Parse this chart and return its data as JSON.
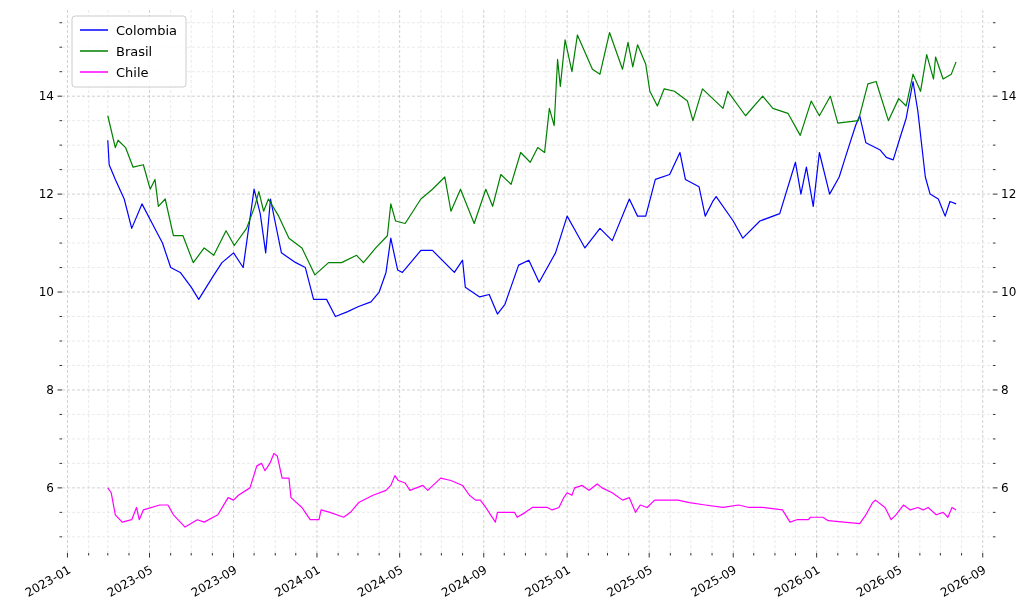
{
  "chart_data": {
    "type": "line",
    "xlim": [
      "2022-12-24",
      "2026-09-16"
    ],
    "ylim": [
      4.67,
      15.76
    ],
    "y2lim": [
      4.67,
      15.76
    ],
    "xticks": [
      "2023-01",
      {
        "value": "2023-02",
        "label": null
      },
      {
        "value": "2023-03",
        "label": null
      },
      {
        "value": "2023-04",
        "label": null
      },
      "2023-05",
      {
        "value": "2023-06",
        "label": null
      },
      {
        "value": "2023-07",
        "label": null
      },
      {
        "value": "2023-08",
        "label": null
      },
      "2023-09",
      {
        "value": "2023-10",
        "label": null
      },
      {
        "value": "2023-11",
        "label": null
      },
      {
        "value": "2023-12",
        "label": null
      },
      "2024-01",
      {
        "value": "2024-02",
        "label": null
      },
      {
        "value": "2024-03",
        "label": null
      },
      {
        "value": "2024-04",
        "label": null
      },
      "2024-05",
      {
        "value": "2024-06",
        "label": null
      },
      {
        "value": "2024-07",
        "label": null
      },
      {
        "value": "2024-08",
        "label": null
      },
      "2024-09",
      {
        "value": "2024-10",
        "label": null
      },
      {
        "value": "2024-11",
        "label": null
      },
      {
        "value": "2024-12",
        "label": null
      },
      "2025-01",
      {
        "value": "2025-02",
        "label": null
      },
      {
        "value": "2025-03",
        "label": null
      },
      {
        "value": "2025-04",
        "label": null
      },
      "2025-05",
      {
        "value": "2025-06",
        "label": null
      },
      {
        "value": "2025-07",
        "label": null
      },
      {
        "value": "2025-08",
        "label": null
      },
      "2025-09",
      {
        "value": "2025-10",
        "label": null
      },
      {
        "value": "2025-11",
        "label": null
      },
      {
        "value": "2025-12",
        "label": null
      },
      "2026-01",
      {
        "value": "2026-02",
        "label": null
      },
      {
        "value": "2026-03",
        "label": null
      },
      {
        "value": "2026-04",
        "label": null
      },
      "2026-05",
      {
        "value": "2026-06",
        "label": null
      },
      {
        "value": "2026-07",
        "label": null
      },
      {
        "value": "2026-08",
        "label": null
      },
      "2026-09"
    ],
    "yticks": [
      {
        "value": 5,
        "label": null
      },
      {
        "value": 5.5,
        "label": null
      },
      6,
      {
        "value": 6.5,
        "label": null
      },
      {
        "value": 7,
        "label": null
      },
      {
        "value": 7.5,
        "label": null
      },
      8,
      {
        "value": 8.5,
        "label": null
      },
      {
        "value": 9,
        "label": null
      },
      {
        "value": 9.5,
        "label": null
      },
      10,
      {
        "value": 10.5,
        "label": null
      },
      {
        "value": 11,
        "label": null
      },
      {
        "value": 11.5,
        "label": null
      },
      12,
      {
        "value": 12.5,
        "label": null
      },
      {
        "value": 13,
        "label": null
      },
      {
        "value": 13.5,
        "label": null
      },
      14,
      {
        "value": 14.5,
        "label": null
      },
      {
        "value": 15,
        "label": null
      },
      {
        "value": 15.5,
        "label": null
      }
    ],
    "y2ticks": [
      {
        "value": 5,
        "label": null
      },
      {
        "value": 5.5,
        "label": null
      },
      6,
      {
        "value": 6.5,
        "label": null
      },
      {
        "value": 7,
        "label": null
      },
      {
        "value": 7.5,
        "label": null
      },
      8,
      {
        "value": 8.5,
        "label": null
      },
      {
        "value": 9,
        "label": null
      },
      {
        "value": 9.5,
        "label": null
      },
      10,
      {
        "value": 10.5,
        "label": null
      },
      {
        "value": 11,
        "label": null
      },
      {
        "value": 11.5,
        "label": null
      },
      12,
      {
        "value": 12.5,
        "label": null
      },
      {
        "value": 13,
        "label": null
      },
      {
        "value": 13.5,
        "label": null
      },
      14,
      {
        "value": 14.5,
        "label": null
      },
      {
        "value": 15,
        "label": null
      },
      {
        "value": 15.5,
        "label": null
      }
    ],
    "grid": true,
    "legend": "top left",
    "line_style": "solid",
    "series": [
      {
        "name": "Colombia",
        "color": "#0000ff",
        "x": [
          "2023-03-01",
          "2023-03-03",
          "2023-03-12",
          "2023-03-25",
          "2023-04-05",
          "2023-04-20",
          "2023-05-05",
          "2023-05-20",
          "2023-06-01",
          "2023-06-15",
          "2023-07-01",
          "2023-07-12",
          "2023-08-01",
          "2023-08-15",
          "2023-09-01",
          "2023-09-15",
          "2023-10-01",
          "2023-10-10",
          "2023-10-18",
          "2023-10-25",
          "2023-11-10",
          "2023-12-01",
          "2023-12-15",
          "2023-12-27",
          "2024-01-15",
          "2024-01-28",
          "2024-02-15",
          "2024-03-01",
          "2024-03-20",
          "2024-04-01",
          "2024-04-11",
          "2024-04-18",
          "2024-04-21",
          "2024-04-28",
          "2024-05-05",
          "2024-06-01",
          "2024-06-18",
          "2024-07-20",
          "2024-08-01",
          "2024-08-05",
          "2024-08-26",
          "2024-09-09",
          "2024-09-21",
          "2024-10-02",
          "2024-10-22",
          "2024-11-06",
          "2024-11-21",
          "2024-12-15",
          "2025-01-01",
          "2025-01-13",
          "2025-01-27",
          "2025-02-18",
          "2025-03-08",
          "2025-04-02",
          "2025-04-14",
          "2025-04-26",
          "2025-05-10",
          "2025-05-31",
          "2025-06-15",
          "2025-06-23",
          "2025-07-13",
          "2025-07-22",
          "2025-08-02",
          "2025-08-07",
          "2025-09-01",
          "2025-09-15",
          "2025-10-10",
          "2025-11-08",
          "2025-12-01",
          "2025-12-09",
          "2025-12-17",
          "2025-12-27",
          "2026-01-05",
          "2026-01-20",
          "2026-02-03",
          "2026-02-12",
          "2026-02-27",
          "2026-03-05",
          "2026-03-14",
          "2026-04-04",
          "2026-04-13",
          "2026-04-23",
          "2026-05-03",
          "2026-05-12",
          "2026-05-22",
          "2026-05-29",
          "2026-06-09",
          "2026-06-16",
          "2026-06-28",
          "2026-07-08",
          "2026-07-15",
          "2026-07-24"
        ],
        "values": [
          13.1,
          12.6,
          12.3,
          11.9,
          11.3,
          11.8,
          11.4,
          11.0,
          10.5,
          10.4,
          10.1,
          9.85,
          10.3,
          10.6,
          10.8,
          10.5,
          12.1,
          11.6,
          10.8,
          11.9,
          10.8,
          10.6,
          10.5,
          9.85,
          9.85,
          9.5,
          9.6,
          9.7,
          9.8,
          10.0,
          10.4,
          11.1,
          10.9,
          10.45,
          10.4,
          10.85,
          10.85,
          10.4,
          10.65,
          10.1,
          9.9,
          9.95,
          9.55,
          9.75,
          10.55,
          10.65,
          10.2,
          10.8,
          11.55,
          11.25,
          10.9,
          11.3,
          11.05,
          11.9,
          11.55,
          11.55,
          12.3,
          12.4,
          12.85,
          12.3,
          12.15,
          11.55,
          11.85,
          11.95,
          11.45,
          11.1,
          11.45,
          11.6,
          12.65,
          12.0,
          12.55,
          11.75,
          12.85,
          12.0,
          12.35,
          12.75,
          13.4,
          13.6,
          13.05,
          12.9,
          12.75,
          12.7,
          13.15,
          13.55,
          14.3,
          13.7,
          12.35,
          12.0,
          11.9,
          11.55,
          11.85,
          11.8
        ]
      },
      {
        "name": "Brasil",
        "color": "#008000",
        "x": [
          "2023-03-01",
          "2023-03-12",
          "2023-03-16",
          "2023-03-27",
          "2023-04-07",
          "2023-04-22",
          "2023-05-02",
          "2023-05-09",
          "2023-05-14",
          "2023-05-24",
          "2023-06-05",
          "2023-06-19",
          "2023-07-04",
          "2023-07-20",
          "2023-08-03",
          "2023-08-21",
          "2023-09-02",
          "2023-09-20",
          "2023-10-02",
          "2023-10-08",
          "2023-10-15",
          "2023-10-22",
          "2023-11-06",
          "2023-11-21",
          "2023-12-10",
          "2023-12-29",
          "2024-01-18",
          "2024-02-06",
          "2024-02-28",
          "2024-03-09",
          "2024-03-27",
          "2024-04-13",
          "2024-04-18",
          "2024-04-25",
          "2024-05-09",
          "2024-06-01",
          "2024-06-18",
          "2024-07-06",
          "2024-07-15",
          "2024-07-29",
          "2024-08-18",
          "2024-09-04",
          "2024-09-14",
          "2024-09-26",
          "2024-10-11",
          "2024-10-25",
          "2024-11-08",
          "2024-11-19",
          "2024-11-29",
          "2024-12-06",
          "2024-12-13",
          "2024-12-18",
          "2024-12-22",
          "2024-12-29",
          "2025-01-08",
          "2025-01-16",
          "2025-02-07",
          "2025-02-18",
          "2025-03-04",
          "2025-03-23",
          "2025-03-31",
          "2025-04-07",
          "2025-04-14",
          "2025-04-26",
          "2025-05-02",
          "2025-05-13",
          "2025-05-23",
          "2025-06-07",
          "2025-06-26",
          "2025-07-04",
          "2025-07-18",
          "2025-08-17",
          "2025-08-24",
          "2025-09-19",
          "2025-10-14",
          "2025-10-29",
          "2025-11-20",
          "2025-12-08",
          "2025-12-24",
          "2026-01-05",
          "2026-01-21",
          "2026-02-01",
          "2026-03-03",
          "2026-03-17",
          "2026-03-29",
          "2026-04-16",
          "2026-05-01",
          "2026-05-12",
          "2026-05-22",
          "2026-06-02",
          "2026-06-11",
          "2026-06-21",
          "2026-06-24",
          "2026-07-05",
          "2026-07-17",
          "2026-07-24"
        ],
        "values": [
          13.6,
          12.95,
          13.1,
          12.95,
          12.55,
          12.6,
          12.1,
          12.3,
          11.75,
          11.9,
          11.15,
          11.15,
          10.6,
          10.9,
          10.75,
          11.25,
          10.95,
          11.3,
          11.75,
          12.05,
          11.65,
          11.9,
          11.55,
          11.1,
          10.9,
          10.35,
          10.6,
          10.6,
          10.75,
          10.6,
          10.9,
          11.15,
          11.8,
          11.45,
          11.4,
          11.9,
          12.1,
          12.35,
          11.65,
          12.1,
          11.4,
          12.1,
          11.75,
          12.4,
          12.2,
          12.85,
          12.65,
          12.95,
          12.85,
          13.75,
          13.4,
          14.75,
          14.2,
          15.15,
          14.5,
          15.25,
          14.55,
          14.45,
          15.3,
          14.55,
          15.1,
          14.6,
          15.05,
          14.65,
          14.1,
          13.8,
          14.15,
          14.1,
          13.9,
          13.5,
          14.15,
          13.75,
          14.1,
          13.6,
          14.0,
          13.75,
          13.65,
          13.2,
          13.9,
          13.6,
          14.0,
          13.45,
          13.5,
          14.25,
          14.3,
          13.5,
          13.95,
          13.8,
          14.45,
          14.1,
          14.85,
          14.35,
          14.8,
          14.35,
          14.45,
          14.7
        ]
      },
      {
        "name": "Chile",
        "color": "#ff00ff",
        "x": [
          "2023-03-01",
          "2023-03-06",
          "2023-03-12",
          "2023-03-22",
          "2023-04-05",
          "2023-04-12",
          "2023-04-16",
          "2023-04-22",
          "2023-05-16",
          "2023-05-28",
          "2023-06-05",
          "2023-06-22",
          "2023-07-10",
          "2023-07-20",
          "2023-08-09",
          "2023-08-24",
          "2023-09-01",
          "2023-09-08",
          "2023-09-25",
          "2023-10-05",
          "2023-10-12",
          "2023-10-17",
          "2023-10-24",
          "2023-10-30",
          "2023-11-04",
          "2023-11-11",
          "2023-11-21",
          "2023-11-24",
          "2023-12-10",
          "2023-12-22",
          "2024-01-04",
          "2024-01-07",
          "2024-01-20",
          "2024-02-09",
          "2024-02-19",
          "2024-03-02",
          "2024-03-23",
          "2024-04-11",
          "2024-04-18",
          "2024-04-24",
          "2024-04-29",
          "2024-05-09",
          "2024-05-16",
          "2024-06-04",
          "2024-06-11",
          "2024-06-30",
          "2024-07-15",
          "2024-08-01",
          "2024-08-11",
          "2024-08-20",
          "2024-08-27",
          "2024-09-04",
          "2024-09-18",
          "2024-09-21",
          "2024-10-16",
          "2024-10-20",
          "2024-11-01",
          "2024-11-11",
          "2024-12-03",
          "2024-12-10",
          "2024-12-20",
          "2024-12-27",
          "2025-01-01",
          "2025-01-08",
          "2025-01-12",
          "2025-01-23",
          "2025-02-02",
          "2025-02-14",
          "2025-02-21",
          "2025-03-08",
          "2025-03-23",
          "2025-04-02",
          "2025-04-11",
          "2025-04-18",
          "2025-04-28",
          "2025-05-09",
          "2025-05-25",
          "2025-06-12",
          "2025-06-29",
          "2025-07-22",
          "2025-08-17",
          "2025-09-09",
          "2025-09-24",
          "2025-10-14",
          "2025-11-12",
          "2025-11-23",
          "2025-12-03",
          "2025-12-20",
          "2025-12-23",
          "2026-01-10",
          "2026-01-18",
          "2026-03-05",
          "2026-03-14",
          "2026-03-24",
          "2026-03-28",
          "2026-04-11",
          "2026-04-20",
          "2026-04-27",
          "2026-05-08",
          "2026-05-18",
          "2026-05-29",
          "2026-06-06",
          "2026-06-13",
          "2026-06-25",
          "2026-07-05",
          "2026-07-12",
          "2026-07-18",
          "2026-07-24"
        ],
        "values": [
          6.0,
          5.9,
          5.45,
          5.3,
          5.35,
          5.6,
          5.35,
          5.55,
          5.65,
          5.65,
          5.45,
          5.2,
          5.35,
          5.3,
          5.45,
          5.8,
          5.75,
          5.85,
          6.0,
          6.45,
          6.5,
          6.35,
          6.5,
          6.7,
          6.65,
          6.2,
          6.2,
          5.8,
          5.6,
          5.35,
          5.35,
          5.55,
          5.5,
          5.4,
          5.5,
          5.7,
          5.85,
          5.95,
          6.05,
          6.25,
          6.15,
          6.1,
          5.95,
          6.05,
          5.95,
          6.2,
          6.15,
          6.05,
          5.85,
          5.75,
          5.75,
          5.6,
          5.3,
          5.5,
          5.5,
          5.4,
          5.5,
          5.6,
          5.6,
          5.55,
          5.6,
          5.8,
          5.9,
          5.85,
          6.0,
          6.05,
          5.95,
          6.08,
          6.0,
          5.9,
          5.75,
          5.8,
          5.5,
          5.65,
          5.6,
          5.75,
          5.75,
          5.75,
          5.7,
          5.65,
          5.6,
          5.65,
          5.6,
          5.6,
          5.55,
          5.3,
          5.35,
          5.35,
          5.4,
          5.4,
          5.33,
          5.27,
          5.45,
          5.7,
          5.75,
          5.6,
          5.35,
          5.45,
          5.65,
          5.55,
          5.6,
          5.55,
          5.6,
          5.45,
          5.5,
          5.4,
          5.6,
          5.55
        ]
      }
    ]
  }
}
